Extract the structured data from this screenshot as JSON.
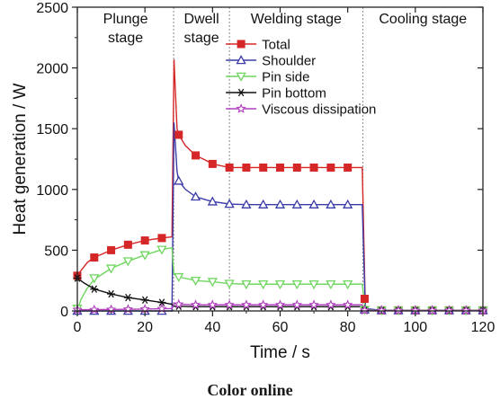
{
  "chart_data": {
    "type": "line",
    "xlabel": "Time / s",
    "ylabel": "Heat generation / W",
    "xlim": [
      0,
      120
    ],
    "ylim": [
      0,
      2500
    ],
    "xticks": [
      "0",
      "20",
      "40",
      "60",
      "80",
      "100",
      "120"
    ],
    "yticks": [
      "0",
      "500",
      "1000",
      "1500",
      "2000",
      "2500"
    ],
    "stages": [
      {
        "label": "Plunge\nstage",
        "start": 0,
        "end": 28.5
      },
      {
        "label": "Dwell\nstage",
        "start": 28.5,
        "end": 45
      },
      {
        "label": "Welding stage",
        "start": 45,
        "end": 84.5
      },
      {
        "label": "Cooling stage",
        "start": 84.5,
        "end": 120
      }
    ],
    "stage_boundaries": [
      28.5,
      45,
      84.5
    ],
    "legend_position": "top-center",
    "series": [
      {
        "name": "Total",
        "color": "#d62728",
        "marker": "square",
        "points": [
          [
            0,
            290
          ],
          [
            1,
            330
          ],
          [
            3,
            400
          ],
          [
            5,
            440
          ],
          [
            10,
            500
          ],
          [
            15,
            545
          ],
          [
            20,
            580
          ],
          [
            25,
            600
          ],
          [
            28,
            610
          ],
          [
            28.6,
            2070
          ],
          [
            29.5,
            1500
          ],
          [
            30,
            1450
          ],
          [
            32,
            1360
          ],
          [
            35,
            1280
          ],
          [
            38,
            1240
          ],
          [
            40,
            1210
          ],
          [
            45,
            1180
          ],
          [
            50,
            1180
          ],
          [
            55,
            1180
          ],
          [
            60,
            1180
          ],
          [
            65,
            1180
          ],
          [
            70,
            1180
          ],
          [
            75,
            1180
          ],
          [
            80,
            1180
          ],
          [
            84.3,
            1180
          ],
          [
            85.2,
            40
          ],
          [
            86,
            10
          ],
          [
            90,
            5
          ],
          [
            100,
            5
          ],
          [
            110,
            5
          ],
          [
            120,
            5
          ]
        ],
        "markers": [
          [
            0,
            290
          ],
          [
            5,
            440
          ],
          [
            10,
            500
          ],
          [
            15,
            545
          ],
          [
            20,
            580
          ],
          [
            25,
            600
          ],
          [
            30,
            1450
          ],
          [
            35,
            1280
          ],
          [
            40,
            1210
          ],
          [
            45,
            1180
          ],
          [
            50,
            1180
          ],
          [
            55,
            1180
          ],
          [
            60,
            1180
          ],
          [
            65,
            1180
          ],
          [
            70,
            1180
          ],
          [
            75,
            1180
          ],
          [
            80,
            1180
          ],
          [
            85,
            100
          ],
          [
            90,
            5
          ],
          [
            95,
            5
          ],
          [
            100,
            5
          ],
          [
            105,
            5
          ],
          [
            110,
            5
          ],
          [
            115,
            5
          ],
          [
            120,
            5
          ]
        ]
      },
      {
        "name": "Shoulder",
        "color": "#3b3ba8",
        "marker": "triangle-up",
        "points": [
          [
            0,
            0
          ],
          [
            28,
            0
          ],
          [
            28.6,
            1550
          ],
          [
            29.5,
            1150
          ],
          [
            30,
            1070
          ],
          [
            32,
            1000
          ],
          [
            35,
            940
          ],
          [
            38,
            915
          ],
          [
            40,
            900
          ],
          [
            45,
            880
          ],
          [
            50,
            875
          ],
          [
            60,
            875
          ],
          [
            70,
            875
          ],
          [
            80,
            875
          ],
          [
            84.3,
            875
          ],
          [
            85.2,
            20
          ],
          [
            90,
            5
          ],
          [
            120,
            5
          ]
        ],
        "markers": [
          [
            0,
            0
          ],
          [
            5,
            0
          ],
          [
            10,
            0
          ],
          [
            15,
            0
          ],
          [
            20,
            0
          ],
          [
            25,
            0
          ],
          [
            30,
            1070
          ],
          [
            35,
            940
          ],
          [
            40,
            900
          ],
          [
            45,
            880
          ],
          [
            50,
            875
          ],
          [
            55,
            875
          ],
          [
            60,
            875
          ],
          [
            65,
            875
          ],
          [
            70,
            875
          ],
          [
            75,
            875
          ],
          [
            80,
            875
          ],
          [
            85,
            10
          ],
          [
            90,
            5
          ],
          [
            95,
            5
          ],
          [
            100,
            5
          ],
          [
            105,
            5
          ],
          [
            110,
            5
          ],
          [
            115,
            5
          ],
          [
            120,
            5
          ]
        ]
      },
      {
        "name": "Pin side",
        "color": "#6fd65f",
        "marker": "triangle-down",
        "points": [
          [
            0,
            0
          ],
          [
            1,
            90
          ],
          [
            3,
            190
          ],
          [
            5,
            260
          ],
          [
            10,
            350
          ],
          [
            15,
            410
          ],
          [
            20,
            460
          ],
          [
            25,
            505
          ],
          [
            28,
            520
          ],
          [
            28.6,
            300
          ],
          [
            30,
            280
          ],
          [
            35,
            250
          ],
          [
            40,
            240
          ],
          [
            45,
            225
          ],
          [
            50,
            220
          ],
          [
            60,
            220
          ],
          [
            70,
            220
          ],
          [
            80,
            220
          ],
          [
            84.3,
            220
          ],
          [
            85.2,
            10
          ],
          [
            90,
            5
          ],
          [
            120,
            5
          ]
        ],
        "markers": [
          [
            0,
            20
          ],
          [
            5,
            270
          ],
          [
            10,
            350
          ],
          [
            15,
            410
          ],
          [
            20,
            460
          ],
          [
            25,
            505
          ],
          [
            30,
            280
          ],
          [
            35,
            250
          ],
          [
            40,
            240
          ],
          [
            45,
            225
          ],
          [
            50,
            220
          ],
          [
            55,
            220
          ],
          [
            60,
            220
          ],
          [
            65,
            220
          ],
          [
            70,
            220
          ],
          [
            75,
            220
          ],
          [
            80,
            220
          ],
          [
            85,
            10
          ],
          [
            90,
            5
          ],
          [
            95,
            5
          ],
          [
            100,
            5
          ],
          [
            105,
            5
          ],
          [
            110,
            5
          ],
          [
            115,
            5
          ],
          [
            120,
            5
          ]
        ]
      },
      {
        "name": "Pin bottom",
        "color": "#111111",
        "marker": "asterisk",
        "points": [
          [
            0,
            270
          ],
          [
            2,
            230
          ],
          [
            5,
            180
          ],
          [
            10,
            140
          ],
          [
            15,
            110
          ],
          [
            20,
            90
          ],
          [
            25,
            70
          ],
          [
            28,
            55
          ],
          [
            28.6,
            40
          ],
          [
            30,
            38
          ],
          [
            35,
            35
          ],
          [
            40,
            35
          ],
          [
            50,
            35
          ],
          [
            60,
            35
          ],
          [
            70,
            35
          ],
          [
            80,
            35
          ],
          [
            84.3,
            35
          ],
          [
            85.2,
            5
          ],
          [
            90,
            3
          ],
          [
            120,
            3
          ]
        ],
        "markers": [
          [
            0,
            270
          ],
          [
            5,
            180
          ],
          [
            10,
            140
          ],
          [
            15,
            110
          ],
          [
            20,
            90
          ],
          [
            25,
            70
          ],
          [
            30,
            38
          ],
          [
            35,
            35
          ],
          [
            40,
            35
          ],
          [
            45,
            35
          ],
          [
            50,
            35
          ],
          [
            55,
            35
          ],
          [
            60,
            35
          ],
          [
            65,
            35
          ],
          [
            70,
            35
          ],
          [
            75,
            35
          ],
          [
            80,
            35
          ],
          [
            85,
            5
          ],
          [
            90,
            3
          ],
          [
            95,
            3
          ],
          [
            100,
            3
          ],
          [
            105,
            3
          ],
          [
            110,
            3
          ],
          [
            115,
            3
          ],
          [
            120,
            3
          ]
        ]
      },
      {
        "name": "Viscous dissipation",
        "color": "#b13fbf",
        "marker": "star",
        "points": [
          [
            0,
            10
          ],
          [
            10,
            12
          ],
          [
            20,
            15
          ],
          [
            28,
            20
          ],
          [
            28.6,
            60
          ],
          [
            30,
            55
          ],
          [
            35,
            50
          ],
          [
            40,
            50
          ],
          [
            50,
            50
          ],
          [
            60,
            50
          ],
          [
            70,
            50
          ],
          [
            80,
            50
          ],
          [
            84.3,
            50
          ],
          [
            85.2,
            5
          ],
          [
            90,
            3
          ],
          [
            120,
            3
          ]
        ],
        "markers": [
          [
            0,
            10
          ],
          [
            5,
            10
          ],
          [
            10,
            12
          ],
          [
            15,
            14
          ],
          [
            20,
            15
          ],
          [
            25,
            18
          ],
          [
            30,
            55
          ],
          [
            35,
            50
          ],
          [
            40,
            50
          ],
          [
            45,
            50
          ],
          [
            50,
            50
          ],
          [
            55,
            50
          ],
          [
            60,
            50
          ],
          [
            65,
            50
          ],
          [
            70,
            50
          ],
          [
            75,
            50
          ],
          [
            80,
            50
          ],
          [
            85,
            5
          ],
          [
            90,
            3
          ],
          [
            95,
            3
          ],
          [
            100,
            3
          ],
          [
            105,
            3
          ],
          [
            110,
            3
          ],
          [
            115,
            3
          ],
          [
            120,
            3
          ]
        ]
      }
    ]
  },
  "caption": "Color online"
}
